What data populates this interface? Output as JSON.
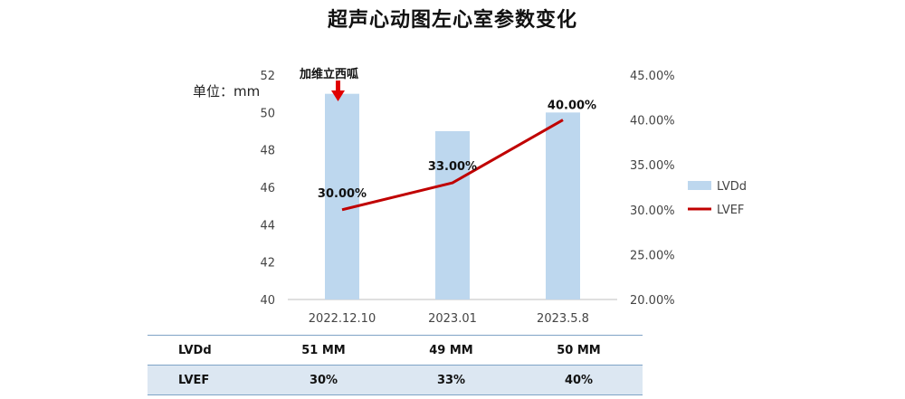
{
  "page": {
    "title": "超声心动图左心室参数变化",
    "unit_label": "单位：mm",
    "annotation": "加维立西呱"
  },
  "chart_data": {
    "type": "bar",
    "categories": [
      "2022.12.10",
      "2023.01",
      "2023.5.8"
    ],
    "series": [
      {
        "name": "LVDd",
        "kind": "bar",
        "axis": "left",
        "values": [
          51,
          49,
          50
        ],
        "color": "#bdd7ee"
      },
      {
        "name": "LVEF",
        "kind": "line",
        "axis": "right",
        "values": [
          0.3,
          0.33,
          0.4
        ],
        "color": "#c00000",
        "data_labels": [
          "30.00%",
          "33.00%",
          "40.00%"
        ]
      }
    ],
    "ylim_left": [
      40,
      52
    ],
    "yticks_left": [
      "40",
      "42",
      "44",
      "46",
      "48",
      "50",
      "52"
    ],
    "ylim_right": [
      0.2,
      0.45
    ],
    "yticks_right": [
      "20.00%",
      "25.00%",
      "30.00%",
      "35.00%",
      "40.00%",
      "45.00%"
    ],
    "grid": false,
    "legend_position": "right",
    "annotation_arrow_color": "#e00000"
  },
  "table": {
    "rows": [
      {
        "label": "LVDd",
        "cells": [
          "51 MM",
          "49 MM",
          "50 MM"
        ]
      },
      {
        "label": "LVEF",
        "cells": [
          "30%",
          "33%",
          "40%"
        ]
      }
    ]
  }
}
